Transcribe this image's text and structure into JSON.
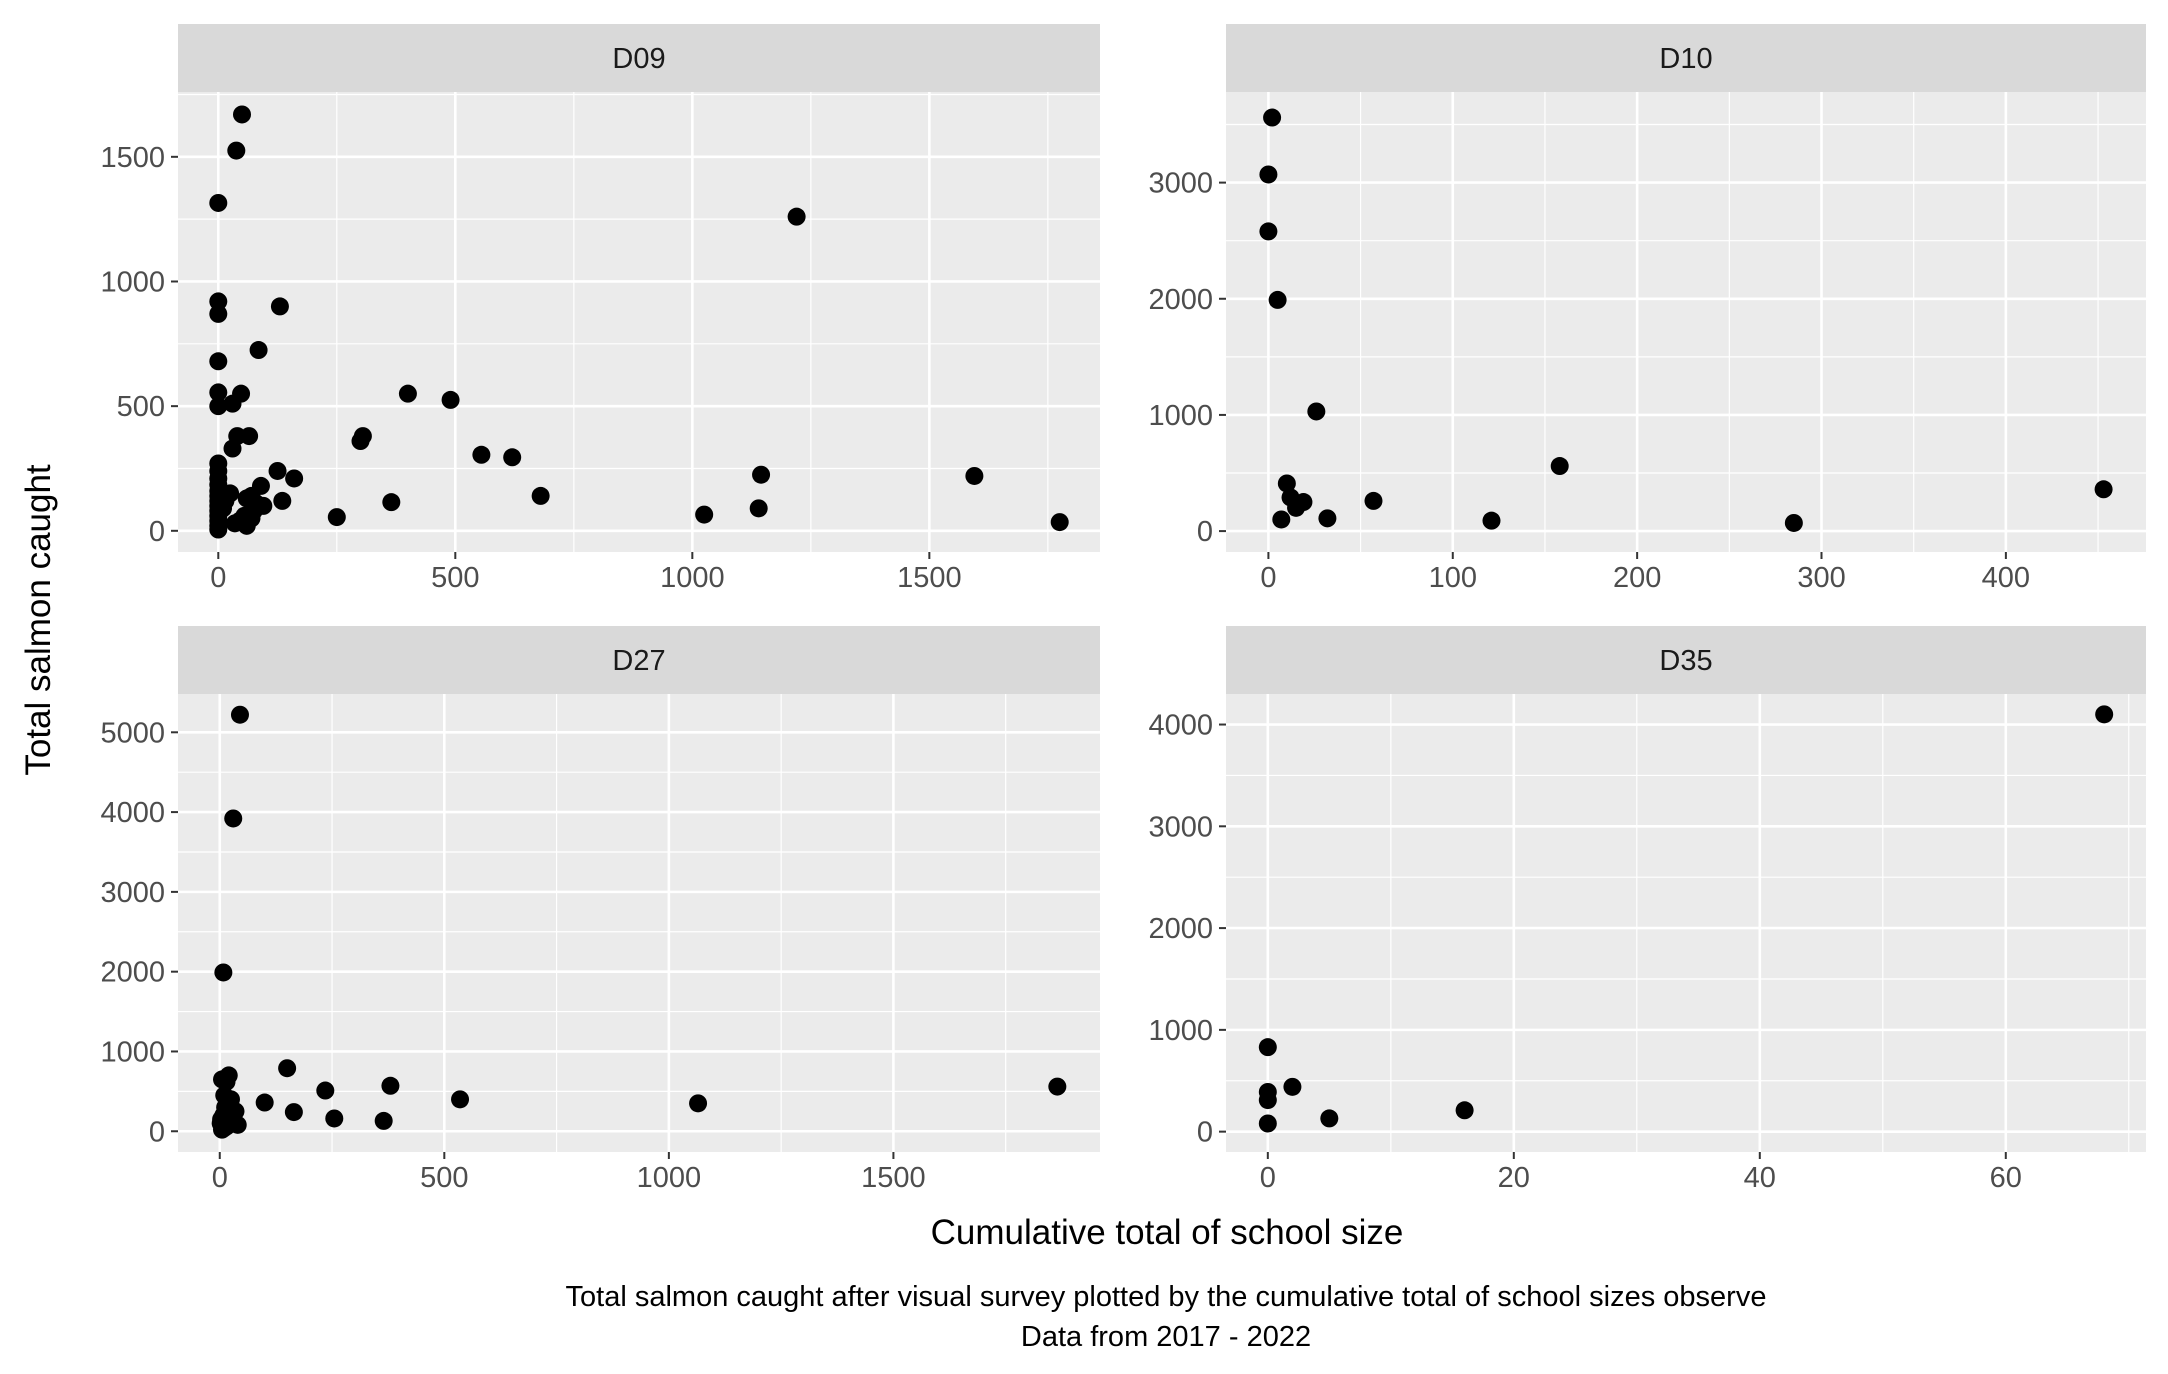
{
  "chart_data": {
    "type": "scatter",
    "xlabel": "Cumulative total of school size",
    "ylabel": "Total salmon caught",
    "caption_lines": [
      "Total salmon caught after visual survey plotted by the cumulative total of school sizes observe",
      "Data from 2017 - 2022"
    ],
    "grid": true,
    "colors": {
      "panel_bg": "#ebebeb",
      "strip_bg": "#d9d9d9",
      "grid": "#ffffff",
      "point": "#000000"
    },
    "panels": [
      {
        "strip": "D09",
        "xlim": [
          -85,
          1860
        ],
        "ylim": [
          -85,
          1760
        ],
        "x_ticks": [
          0,
          500,
          1000,
          1500
        ],
        "y_ticks": [
          0,
          500,
          1000,
          1500
        ],
        "x_tick_labels": [
          "0",
          "500",
          "1000",
          "1500"
        ],
        "y_tick_labels": [
          "0",
          "500",
          "1000",
          "1500"
        ],
        "x": [
          50,
          38,
          0,
          0,
          0,
          0,
          0,
          0,
          0,
          1220,
          130,
          85,
          48,
          30,
          65,
          40,
          0,
          0,
          0,
          0,
          0,
          0,
          0,
          0,
          0,
          0,
          0,
          0,
          30,
          25,
          15,
          10,
          60,
          70,
          80,
          90,
          95,
          125,
          160,
          135,
          75,
          55,
          45,
          35,
          60,
          70,
          300,
          305,
          400,
          490,
          555,
          620,
          680,
          365,
          250,
          1025,
          1140,
          1145,
          1595,
          1775
        ],
        "y": [
          1670,
          1525,
          1315,
          920,
          870,
          680,
          555,
          500,
          270,
          1260,
          900,
          725,
          550,
          510,
          380,
          380,
          240,
          210,
          185,
          160,
          140,
          120,
          100,
          80,
          60,
          40,
          20,
          5,
          330,
          150,
          120,
          90,
          130,
          140,
          110,
          180,
          100,
          240,
          210,
          120,
          80,
          60,
          40,
          30,
          20,
          50,
          360,
          380,
          550,
          525,
          305,
          295,
          140,
          115,
          55,
          65,
          90,
          225,
          220,
          35
        ]
      },
      {
        "strip": "D10",
        "xlim": [
          -23,
          476
        ],
        "ylim": [
          -180,
          3780
        ],
        "x_ticks": [
          0,
          100,
          200,
          300,
          400
        ],
        "y_ticks": [
          0,
          1000,
          2000,
          3000
        ],
        "x_tick_labels": [
          "0",
          "100",
          "200",
          "300",
          "400"
        ],
        "y_tick_labels": [
          "0",
          "1000",
          "2000",
          "3000"
        ],
        "x": [
          2,
          0,
          0,
          5,
          26,
          10,
          12,
          15,
          19,
          7,
          32,
          57,
          121,
          158,
          285,
          453
        ],
        "y": [
          3560,
          3070,
          2580,
          1990,
          1030,
          410,
          290,
          200,
          250,
          100,
          110,
          260,
          90,
          560,
          70,
          360
        ]
      },
      {
        "strip": "D27",
        "xlim": [
          -93,
          1960
        ],
        "ylim": [
          -260,
          5480
        ],
        "x_ticks": [
          0,
          500,
          1000,
          1500
        ],
        "y_ticks": [
          0,
          1000,
          2000,
          3000,
          4000,
          5000
        ],
        "x_tick_labels": [
          "0",
          "500",
          "1000",
          "1500"
        ],
        "y_tick_labels": [
          "0",
          "1000",
          "2000",
          "3000",
          "4000",
          "5000"
        ],
        "x": [
          45,
          30,
          8,
          5,
          20,
          15,
          10,
          25,
          18,
          12,
          8,
          3,
          35,
          40,
          30,
          20,
          15,
          10,
          5,
          2,
          100,
          150,
          165,
          235,
          255,
          365,
          380,
          535,
          1065,
          1865
        ],
        "y": [
          5220,
          3920,
          1990,
          650,
          700,
          620,
          450,
          400,
          350,
          300,
          200,
          150,
          250,
          80,
          120,
          180,
          60,
          40,
          20,
          100,
          360,
          790,
          240,
          510,
          160,
          130,
          570,
          400,
          350,
          560
        ]
      },
      {
        "strip": "D35",
        "xlim": [
          -3.4,
          71.4
        ],
        "ylim": [
          -200,
          4300
        ],
        "x_ticks": [
          0,
          20,
          40,
          60
        ],
        "y_ticks": [
          0,
          1000,
          2000,
          3000,
          4000
        ],
        "x_tick_labels": [
          "0",
          "20",
          "40",
          "60"
        ],
        "y_tick_labels": [
          "0",
          "1000",
          "2000",
          "3000",
          "4000"
        ],
        "x": [
          68,
          0,
          0,
          0,
          0,
          2,
          5,
          16
        ],
        "y": [
          4100,
          830,
          390,
          310,
          80,
          440,
          130,
          210
        ]
      }
    ]
  }
}
